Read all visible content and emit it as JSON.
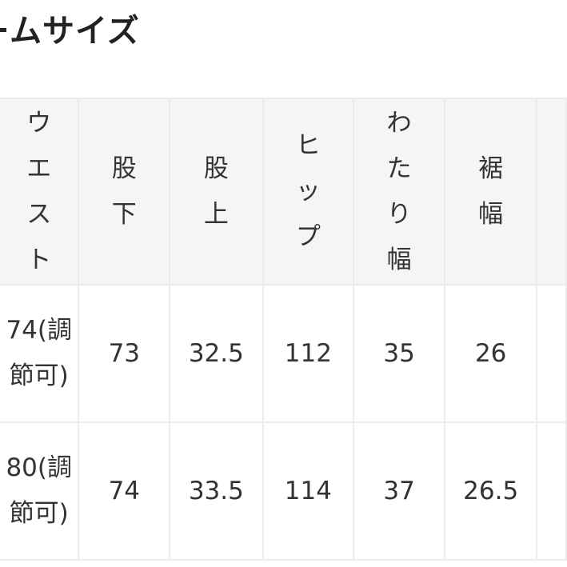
{
  "title": "ムサイズ",
  "table": {
    "headers": [
      "ウエスト",
      "股下",
      "股上",
      "ヒップ",
      "わたり幅",
      "裾幅"
    ],
    "rows": [
      [
        "74(調節可)",
        "73",
        "32.5",
        "112",
        "35",
        "26"
      ],
      [
        "80(調節可)",
        "74",
        "33.5",
        "114",
        "37",
        "26.5"
      ]
    ]
  },
  "colors": {
    "header_bg": "#f5f5f5",
    "border": "#ececec",
    "text": "#333333"
  }
}
